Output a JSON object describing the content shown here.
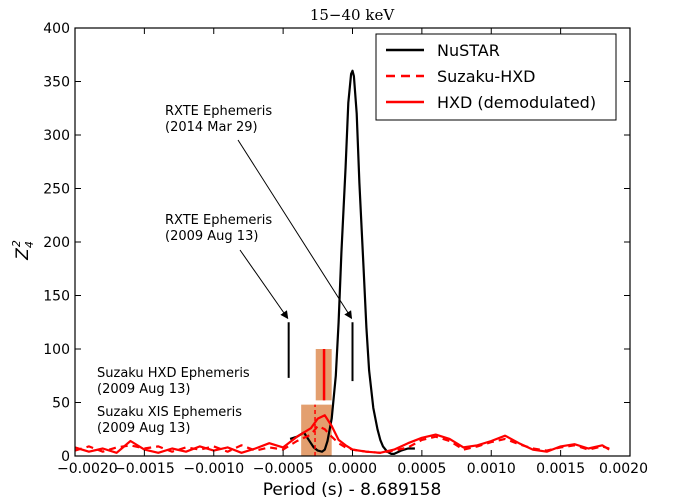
{
  "chart_data": {
    "type": "line",
    "title": "15−40 keV",
    "xlabel": "Period (s) - 8.689158",
    "ylabel": "Z",
    "ylabel_sub": "4",
    "ylabel_sup": "2",
    "xlim": [
      -0.002,
      0.002
    ],
    "ylim": [
      0,
      400
    ],
    "xticks": [
      -0.002,
      -0.0015,
      -0.001,
      -0.0005,
      0.0,
      0.0005,
      0.001,
      0.0015,
      0.002
    ],
    "xtick_labels": [
      "−0.0020",
      "−0.0015",
      "−0.0010",
      "−0.0005",
      "0.0000",
      "0.0005",
      "0.0010",
      "0.0015",
      "0.0020"
    ],
    "yticks": [
      0,
      50,
      100,
      150,
      200,
      250,
      300,
      350,
      400
    ],
    "ytick_labels": [
      "0",
      "50",
      "100",
      "150",
      "200",
      "250",
      "300",
      "350",
      "400"
    ],
    "grid": false,
    "legend_position": "top-right",
    "series": [
      {
        "name": "NuSTAR",
        "color": "#000000",
        "style": "solid",
        "x": [
          -0.00045,
          -0.0004,
          -0.00035,
          -0.0003,
          -0.00028,
          -0.00025,
          -0.00022,
          -0.0002,
          -0.00018,
          -0.00015,
          -0.00012,
          -0.0001,
          -8e-05,
          -5e-05,
          -3e-05,
          -1e-05,
          0.0,
          1e-05,
          3e-05,
          5e-05,
          8e-05,
          0.0001,
          0.00012,
          0.00015,
          0.00018,
          0.0002,
          0.00022,
          0.00025,
          0.00028,
          0.0003,
          0.00035,
          0.0004,
          0.00045
        ],
        "y": [
          16,
          18,
          22,
          12,
          8,
          5,
          4,
          6,
          14,
          35,
          75,
          125,
          190,
          270,
          330,
          357,
          360,
          355,
          320,
          255,
          175,
          120,
          80,
          45,
          25,
          15,
          9,
          4,
          2,
          2,
          5,
          7,
          7
        ]
      },
      {
        "name": "Suzaku-HXD",
        "color": "#ff0000",
        "style": "dashed",
        "x": [
          -0.002,
          -0.0019,
          -0.0018,
          -0.0017,
          -0.0016,
          -0.0015,
          -0.0014,
          -0.0013,
          -0.0012,
          -0.0011,
          -0.001,
          -0.0009,
          -0.0008,
          -0.0007,
          -0.0006,
          -0.0005,
          -0.0004,
          -0.0003,
          -0.00025,
          -0.0002,
          -0.00015,
          -0.0001,
          -5e-05,
          0.0,
          0.0001,
          0.0002,
          0.0003,
          0.0004,
          0.0005,
          0.0006,
          0.0007,
          0.0008,
          0.0009,
          0.001,
          0.0011,
          0.0012,
          0.0013,
          0.0014,
          0.0015,
          0.0016,
          0.0017,
          0.0018,
          0.00185
        ],
        "y": [
          5,
          9,
          4,
          8,
          10,
          7,
          9,
          4,
          8,
          6,
          9,
          4,
          10,
          5,
          8,
          6,
          14,
          20,
          28,
          25,
          18,
          12,
          8,
          6,
          4,
          3,
          5,
          8,
          15,
          18,
          14,
          6,
          9,
          13,
          16,
          11,
          7,
          5,
          8,
          10,
          6,
          9,
          7
        ]
      },
      {
        "name": "HXD (demodulated)",
        "color": "#ff0000",
        "style": "solid",
        "x": [
          -0.002,
          -0.0019,
          -0.0018,
          -0.0017,
          -0.0016,
          -0.0015,
          -0.0014,
          -0.0013,
          -0.0012,
          -0.0011,
          -0.001,
          -0.0009,
          -0.0008,
          -0.0007,
          -0.0006,
          -0.0005,
          -0.0004,
          -0.0003,
          -0.00025,
          -0.0002,
          -0.00015,
          -0.0001,
          -5e-05,
          0.0,
          0.0001,
          0.0002,
          0.0003,
          0.0004,
          0.0005,
          0.0006,
          0.0007,
          0.0008,
          0.0009,
          0.001,
          0.0011,
          0.0012,
          0.0013,
          0.0014,
          0.0015,
          0.0016,
          0.0017,
          0.0018,
          0.00185
        ],
        "y": [
          8,
          4,
          7,
          3,
          14,
          6,
          3,
          7,
          4,
          9,
          5,
          8,
          3,
          7,
          12,
          8,
          18,
          26,
          35,
          38,
          28,
          15,
          10,
          6,
          4,
          3,
          6,
          12,
          17,
          20,
          16,
          8,
          10,
          14,
          19,
          12,
          6,
          4,
          9,
          11,
          7,
          10,
          6
        ]
      }
    ],
    "annotations": [
      {
        "line1": "RXTE Ephemeris",
        "line2": "(2014 Mar 29)",
        "marker_x": 0.0,
        "marker_y": [
          70,
          125
        ],
        "arrow_to_y": 125
      },
      {
        "line1": "RXTE Ephemeris",
        "line2": "(2009 Aug 13)",
        "marker_x": -0.00046,
        "marker_y": [
          73,
          125
        ],
        "arrow_to_y": 125
      },
      {
        "line1": "Suzaku HXD Ephemeris",
        "line2": "(2009 Aug 13)",
        "marker_x": -0.000205,
        "box_x": [
          -0.000265,
          -0.00015
        ],
        "box_y": [
          52,
          100
        ]
      },
      {
        "line1": "Suzaku XIS Ephemeris",
        "line2": "(2009 Aug 13)",
        "marker_x": -0.00027,
        "box_x": [
          -0.00037,
          -0.00015
        ],
        "box_y": [
          0,
          48
        ]
      }
    ],
    "colors": {
      "band": "#d97f3f",
      "band_opacity": "0.75",
      "marker": "#000000",
      "fit_marker": "#ff0000"
    }
  }
}
